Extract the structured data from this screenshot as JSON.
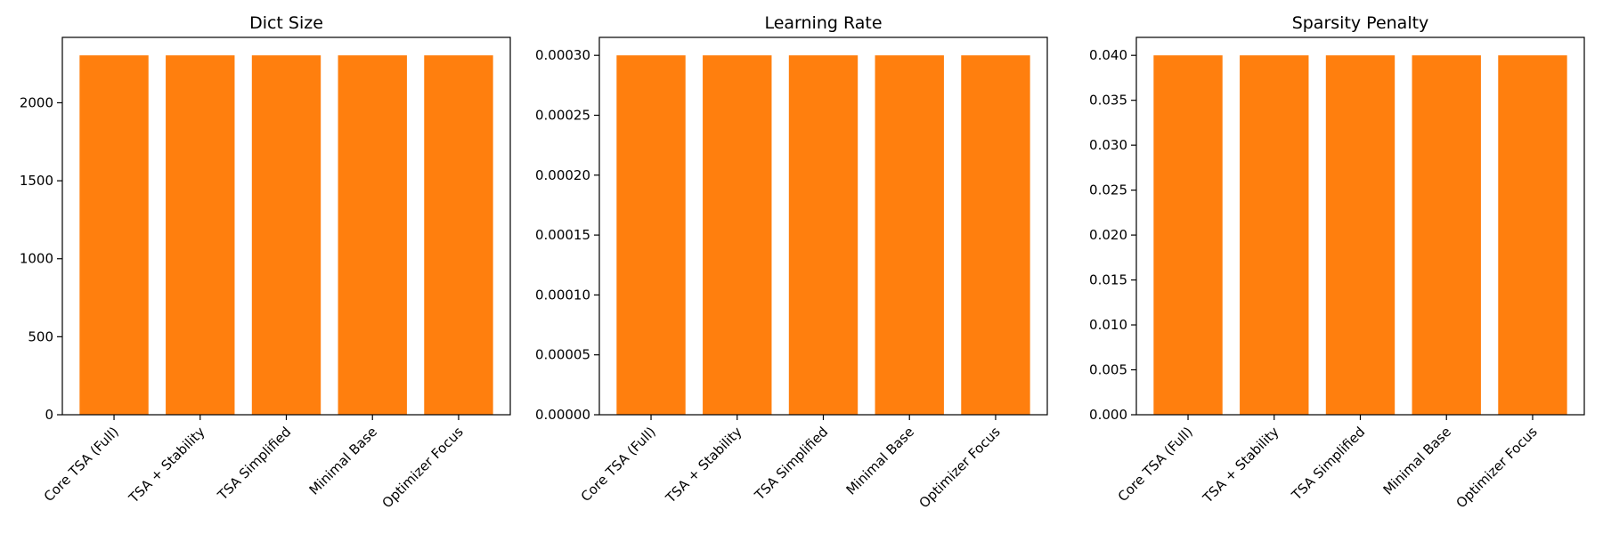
{
  "chart_data": [
    {
      "type": "bar",
      "title": "Dict Size",
      "categories": [
        "Core TSA (Full)",
        "TSA + Stability",
        "TSA Simplified",
        "Minimal Base",
        "Optimizer Focus"
      ],
      "values": [
        2304,
        2304,
        2304,
        2304,
        2304
      ],
      "ylim": [
        0,
        2419.2
      ],
      "yticks": [
        0,
        500,
        1000,
        1500,
        2000
      ],
      "ytick_labels": [
        "0",
        "500",
        "1000",
        "1500",
        "2000"
      ],
      "xlabel": "",
      "ylabel": "",
      "grid": false
    },
    {
      "type": "bar",
      "title": "Learning Rate",
      "categories": [
        "Core TSA (Full)",
        "TSA + Stability",
        "TSA Simplified",
        "Minimal Base",
        "Optimizer Focus"
      ],
      "values": [
        0.0003,
        0.0003,
        0.0003,
        0.0003,
        0.0003
      ],
      "ylim": [
        0,
        0.000315
      ],
      "yticks": [
        0,
        5e-05,
        0.0001,
        0.00015,
        0.0002,
        0.00025,
        0.0003
      ],
      "ytick_labels": [
        "0.00000",
        "0.00005",
        "0.00010",
        "0.00015",
        "0.00020",
        "0.00025",
        "0.00030"
      ],
      "xlabel": "",
      "ylabel": "",
      "grid": false
    },
    {
      "type": "bar",
      "title": "Sparsity Penalty",
      "categories": [
        "Core TSA (Full)",
        "TSA + Stability",
        "TSA Simplified",
        "Minimal Base",
        "Optimizer Focus"
      ],
      "values": [
        0.04,
        0.04,
        0.04,
        0.04,
        0.04
      ],
      "ylim": [
        0,
        0.042
      ],
      "yticks": [
        0,
        0.005,
        0.01,
        0.015,
        0.02,
        0.025,
        0.03,
        0.035,
        0.04
      ],
      "ytick_labels": [
        "0.000",
        "0.005",
        "0.010",
        "0.015",
        "0.020",
        "0.025",
        "0.030",
        "0.035",
        "0.040"
      ],
      "xlabel": "",
      "ylabel": "",
      "grid": false
    }
  ],
  "colors": {
    "bar": "#ff7f0e",
    "axis": "#000000",
    "background": "#ffffff"
  }
}
